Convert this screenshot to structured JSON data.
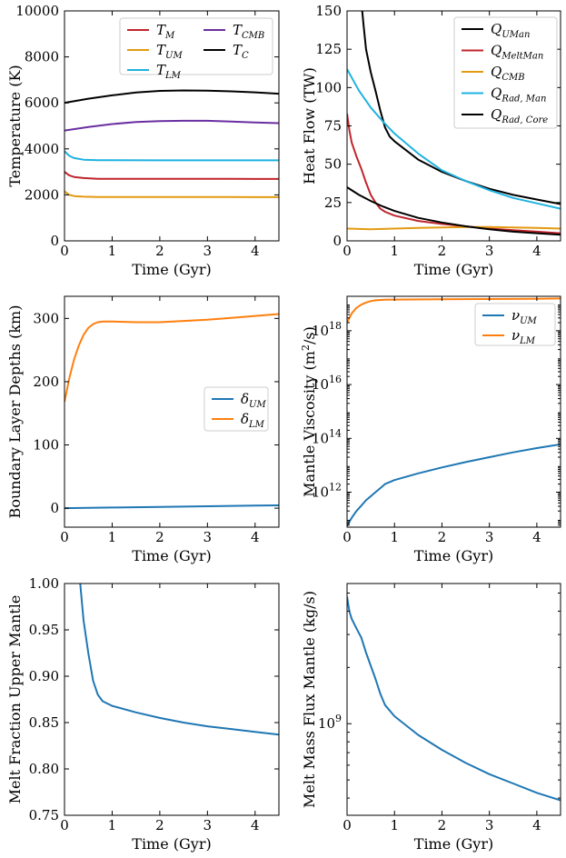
{
  "chart_data": [
    {
      "id": "temp",
      "type": "line",
      "xlabel": "Time (Gyr)",
      "ylabel": "Temperature (K)",
      "xlim": [
        0,
        4.5
      ],
      "ylim": [
        0,
        10000
      ],
      "yscale": "linear",
      "xticks": [
        0,
        1,
        2,
        3,
        4
      ],
      "yticks": [
        0,
        2000,
        4000,
        6000,
        8000,
        10000
      ],
      "legend": {
        "position": "top-right",
        "columns": 2
      },
      "series": [
        {
          "name": "T_M",
          "main": "T",
          "sub": "M",
          "color": "#c0252d",
          "x": [
            0,
            0.1,
            0.2,
            0.4,
            0.7,
            1,
            2,
            3,
            4,
            4.5
          ],
          "y": [
            3000,
            2850,
            2780,
            2730,
            2700,
            2700,
            2700,
            2700,
            2690,
            2690
          ]
        },
        {
          "name": "T_UM",
          "main": "T",
          "sub": "UM",
          "color": "#e39a12",
          "x": [
            0,
            0.1,
            0.2,
            0.4,
            0.7,
            1,
            2,
            3,
            4,
            4.5
          ],
          "y": [
            2150,
            2000,
            1950,
            1920,
            1910,
            1910,
            1910,
            1910,
            1900,
            1900
          ]
        },
        {
          "name": "T_LM",
          "main": "T",
          "sub": "LM",
          "color": "#1fb2e0",
          "x": [
            0,
            0.1,
            0.2,
            0.4,
            0.7,
            1,
            2,
            3,
            4,
            4.5
          ],
          "y": [
            3900,
            3700,
            3600,
            3530,
            3510,
            3510,
            3500,
            3500,
            3500,
            3500
          ]
        },
        {
          "name": "T_CMB",
          "main": "T",
          "sub": "CMB",
          "color": "#6a2ea1",
          "x": [
            0,
            0.5,
            1,
            1.5,
            2,
            2.5,
            3,
            3.5,
            4,
            4.5
          ],
          "y": [
            4800,
            4950,
            5080,
            5170,
            5210,
            5220,
            5220,
            5190,
            5150,
            5120
          ]
        },
        {
          "name": "T_C",
          "main": "T",
          "sub": "C",
          "color": "#000000",
          "x": [
            0,
            0.5,
            1,
            1.5,
            2,
            2.5,
            3,
            3.5,
            4,
            4.5
          ],
          "y": [
            6000,
            6180,
            6330,
            6450,
            6520,
            6540,
            6530,
            6500,
            6460,
            6400
          ]
        }
      ]
    },
    {
      "id": "heat",
      "type": "line",
      "xlabel": "Time (Gyr)",
      "ylabel": "Heat Flow (TW)",
      "xlim": [
        0,
        4.5
      ],
      "ylim": [
        0,
        150
      ],
      "yscale": "linear",
      "xticks": [
        0,
        1,
        2,
        3,
        4
      ],
      "yticks": [
        0,
        25,
        50,
        75,
        100,
        125,
        150
      ],
      "legend": {
        "position": "top-right",
        "columns": 1
      },
      "series": [
        {
          "name": "Q_UMan",
          "main": "Q",
          "sub": "UMan",
          "color": "#000000",
          "x": [
            0.32,
            0.35,
            0.4,
            0.5,
            0.6,
            0.7,
            0.8,
            0.9,
            1,
            1.5,
            2,
            2.5,
            3,
            3.5,
            4,
            4.5
          ],
          "y": [
            150,
            140,
            125,
            110,
            98,
            85,
            74,
            68,
            65,
            53,
            45,
            39,
            34,
            30,
            27,
            24
          ]
        },
        {
          "name": "Q_MeltMan",
          "main": "Q",
          "sub": "MeltMan",
          "color": "#c0252d",
          "x": [
            0,
            0.05,
            0.1,
            0.2,
            0.3,
            0.4,
            0.5,
            0.6,
            0.7,
            0.8,
            1,
            1.5,
            2,
            2.5,
            3,
            3.5,
            4,
            4.5
          ],
          "y": [
            83,
            72,
            64,
            55,
            47,
            38,
            30,
            25,
            21,
            19,
            16.5,
            13,
            11,
            9.5,
            8,
            7,
            6,
            5
          ]
        },
        {
          "name": "Q_CMB",
          "main": "Q",
          "sub": "CMB",
          "color": "#e39a12",
          "x": [
            0,
            0.5,
            1,
            1.5,
            2,
            2.5,
            3,
            3.5,
            4,
            4.5
          ],
          "y": [
            8,
            7.5,
            8,
            8.5,
            8.8,
            9,
            9,
            8.7,
            8.4,
            8
          ]
        },
        {
          "name": "Q_Rad,Man",
          "main": "Q",
          "sub": "Rad, Man",
          "color": "#1fb2e0",
          "x": [
            0,
            0.25,
            0.5,
            0.75,
            1,
            1.5,
            2,
            2.5,
            3,
            3.5,
            4,
            4.5
          ],
          "y": [
            112,
            98,
            87,
            78,
            70,
            57,
            46,
            39,
            33,
            28,
            24.5,
            21
          ]
        },
        {
          "name": "Q_Rad,Core",
          "main": "Q",
          "sub": "Rad, Core",
          "color": "#000000",
          "x": [
            0,
            0.25,
            0.5,
            0.75,
            1,
            1.5,
            2,
            2.5,
            3,
            3.5,
            4,
            4.5
          ],
          "y": [
            35,
            30,
            26,
            22.5,
            19.5,
            15,
            12,
            9.5,
            7.5,
            6,
            5,
            4
          ]
        }
      ]
    },
    {
      "id": "bl",
      "type": "line",
      "xlabel": "Time (Gyr)",
      "ylabel": "Boundary Layer Depths (km)",
      "xlim": [
        0,
        4.5
      ],
      "ylim": [
        -30,
        335
      ],
      "yscale": "linear",
      "xticks": [
        0,
        1,
        2,
        3,
        4
      ],
      "yticks": [
        0,
        100,
        200,
        300
      ],
      "legend": {
        "position": "center-right",
        "columns": 1
      },
      "series": [
        {
          "name": "delta_UM",
          "main": "δ",
          "sub": "UM",
          "color": "#1f77b4",
          "x": [
            0,
            1,
            2,
            3,
            4,
            4.5
          ],
          "y": [
            0,
            1,
            2,
            3,
            4,
            4.5
          ]
        },
        {
          "name": "delta_LM",
          "main": "δ",
          "sub": "LM",
          "color": "#ff7f0e",
          "x": [
            0,
            0.1,
            0.2,
            0.3,
            0.4,
            0.5,
            0.6,
            0.7,
            0.8,
            1,
            1.5,
            2,
            2.5,
            3,
            3.5,
            4,
            4.5
          ],
          "y": [
            168,
            205,
            235,
            257,
            274,
            285,
            291,
            294,
            295,
            295,
            294,
            294,
            296,
            298,
            301,
            304,
            307
          ]
        }
      ]
    },
    {
      "id": "visc",
      "type": "line",
      "xlabel": "Time (Gyr)",
      "ylabel": "Mantle Viscosity (m^2/s)",
      "xlim": [
        0,
        4.5
      ],
      "ylim": [
        10.7,
        19.28
      ],
      "yscale": "log10",
      "xticks": [
        0,
        1,
        2,
        3,
        4
      ],
      "yticks": [
        12,
        14,
        16,
        18
      ],
      "legend": {
        "position": "top-right",
        "columns": 1
      },
      "series": [
        {
          "name": "nu_UM",
          "main": "ν",
          "sub": "UM",
          "color": "#1f77b4",
          "x": [
            0,
            0.1,
            0.2,
            0.3,
            0.4,
            0.5,
            0.6,
            0.7,
            0.8,
            1,
            1.5,
            2,
            2.5,
            3,
            3.5,
            4,
            4.5
          ],
          "y": [
            10.75,
            11.05,
            11.3,
            11.5,
            11.7,
            11.85,
            12.0,
            12.15,
            12.3,
            12.45,
            12.7,
            12.92,
            13.12,
            13.3,
            13.48,
            13.64,
            13.78
          ]
        },
        {
          "name": "nu_LM",
          "main": "ν",
          "sub": "LM",
          "color": "#ff7f0e",
          "x": [
            0,
            0.1,
            0.2,
            0.3,
            0.4,
            0.5,
            0.6,
            0.8,
            1,
            2,
            3,
            4,
            4.5
          ],
          "y": [
            18.3,
            18.65,
            18.85,
            18.97,
            19.05,
            19.1,
            19.13,
            19.15,
            19.16,
            19.17,
            19.18,
            19.19,
            19.2
          ]
        }
      ]
    },
    {
      "id": "melt",
      "type": "line",
      "xlabel": "Time (Gyr)",
      "ylabel": "Melt Fraction Upper Mantle",
      "xlim": [
        0,
        4.5
      ],
      "ylim": [
        0.75,
        1.0
      ],
      "yscale": "linear",
      "xticks": [
        0,
        1,
        2,
        3,
        4
      ],
      "yticks": [
        0.75,
        0.8,
        0.85,
        0.9,
        0.95,
        1.0
      ],
      "legend": null,
      "series": [
        {
          "name": "melt_fraction",
          "main": "",
          "sub": "",
          "color": "#1f77b4",
          "x": [
            0.33,
            0.4,
            0.5,
            0.6,
            0.7,
            0.8,
            1,
            1.5,
            2,
            2.5,
            3,
            3.5,
            4,
            4.5
          ],
          "y": [
            1.0,
            0.96,
            0.925,
            0.895,
            0.88,
            0.873,
            0.868,
            0.861,
            0.855,
            0.85,
            0.846,
            0.843,
            0.84,
            0.837
          ]
        }
      ]
    },
    {
      "id": "flux",
      "type": "line",
      "xlabel": "Time (Gyr)",
      "ylabel": "Melt Mass Flux Mantle (kg/s)",
      "xlim": [
        0,
        4.5
      ],
      "ylim": [
        8.51,
        9.75
      ],
      "yscale": "log10",
      "xticks": [
        0,
        1,
        2,
        3,
        4
      ],
      "yticks": [
        9
      ],
      "legend": null,
      "series": [
        {
          "name": "melt_flux",
          "main": "",
          "sub": "",
          "color": "#1f77b4",
          "x": [
            0,
            0.05,
            0.1,
            0.2,
            0.3,
            0.4,
            0.5,
            0.6,
            0.7,
            0.8,
            1,
            1.5,
            2,
            2.5,
            3,
            3.5,
            4,
            4.5
          ],
          "y": [
            9.68,
            9.6,
            9.56,
            9.51,
            9.46,
            9.38,
            9.31,
            9.24,
            9.16,
            9.1,
            9.04,
            8.94,
            8.86,
            8.79,
            8.73,
            8.68,
            8.63,
            8.59
          ]
        }
      ]
    }
  ]
}
